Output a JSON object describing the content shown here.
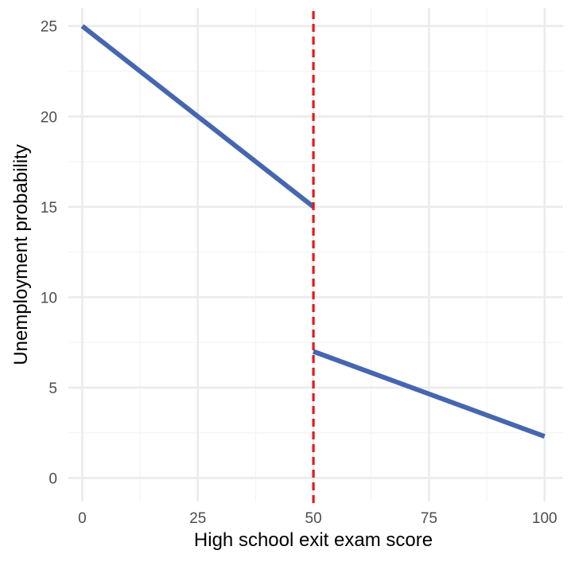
{
  "chart_data": {
    "type": "line",
    "title": "",
    "xlabel": "High school exit exam score",
    "ylabel": "Unemployment probability",
    "xlim": [
      -3,
      104
    ],
    "ylim": [
      -1.3,
      26
    ],
    "x_ticks": [
      0,
      25,
      50,
      75,
      100
    ],
    "x_tick_labels": [
      "0",
      "25",
      "50",
      "75",
      "100"
    ],
    "y_ticks": [
      0,
      5,
      10,
      15,
      20,
      25
    ],
    "y_tick_labels": [
      "0",
      "5",
      "10",
      "15",
      "20",
      "25"
    ],
    "x_minor_ticks": [
      12.5,
      37.5,
      62.5,
      87.5
    ],
    "y_minor_ticks": [
      2.5,
      7.5,
      12.5,
      17.5,
      22.5
    ],
    "grid": true,
    "series": [
      {
        "segment": "below-cutoff",
        "x": [
          0,
          50
        ],
        "values": [
          25,
          15
        ]
      },
      {
        "segment": "above-cutoff",
        "x": [
          50,
          100
        ],
        "values": [
          7,
          2.3
        ]
      }
    ],
    "cutoff": {
      "x": 50,
      "style": "dashed"
    },
    "colors": {
      "line": "#4666B0",
      "cutoff": "#E41A1C",
      "grid_major": "#EBEBEB",
      "grid_minor": "#F5F5F5",
      "tick_text": "#4D4D4D",
      "axis_title": "#000000"
    }
  }
}
